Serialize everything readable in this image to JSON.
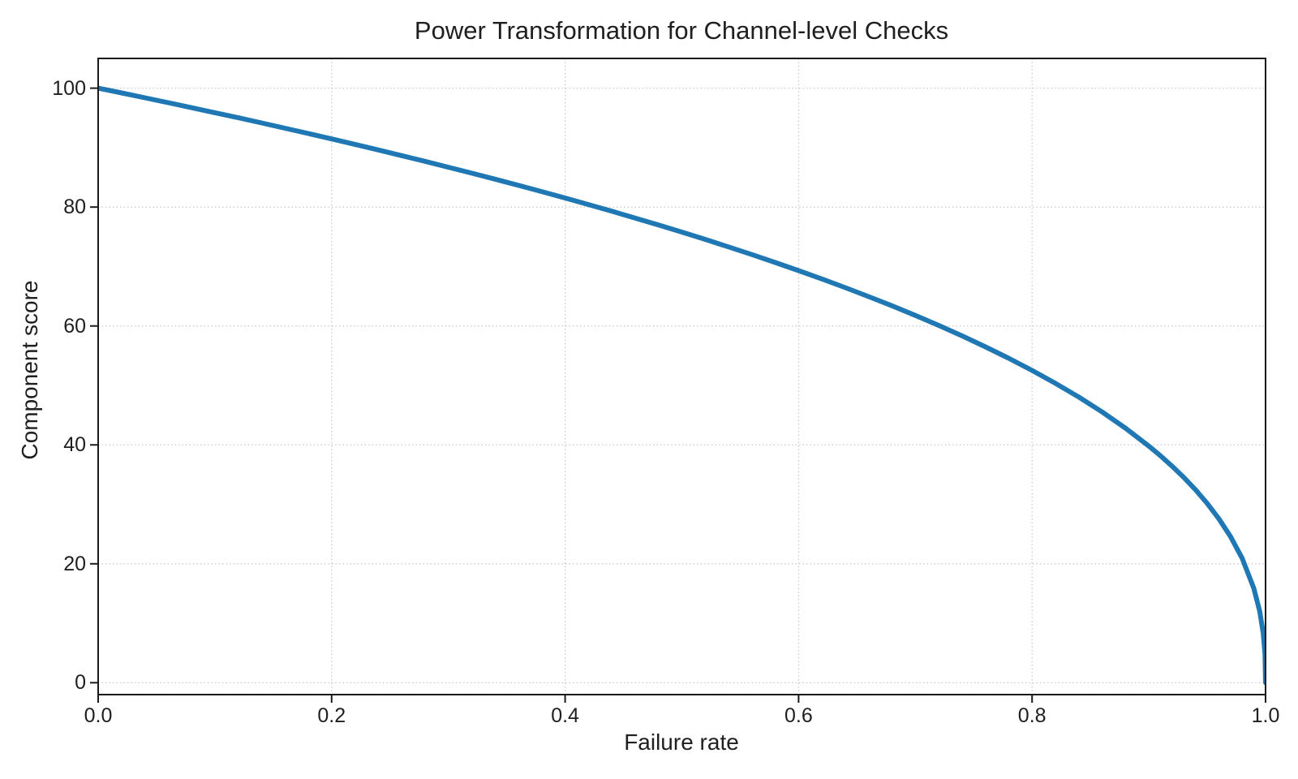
{
  "title": "Power Transformation for Channel-level Checks",
  "colors": {
    "line": "#1f77b4",
    "grid": "#c9c9c9",
    "spine": "#1a1a1a",
    "text": "#1f1f1f",
    "background": "#ffffff"
  },
  "chart_data": {
    "type": "line",
    "title": "Power Transformation for Channel-level Checks",
    "xlabel": "Failure rate",
    "ylabel": "Component score",
    "xlim": [
      0.0,
      1.0
    ],
    "ylim": [
      -2,
      105
    ],
    "xticks": [
      0.0,
      0.2,
      0.4,
      0.6,
      0.8,
      1.0
    ],
    "xtick_labels": [
      "0.0",
      "0.2",
      "0.4",
      "0.6",
      "0.8",
      "1.0"
    ],
    "yticks": [
      0,
      20,
      40,
      60,
      80,
      100
    ],
    "ytick_labels": [
      "0",
      "20",
      "40",
      "60",
      "80",
      "100"
    ],
    "grid": "dotted",
    "legend": false,
    "formula": "y = 100 * (1 - x)^0.4",
    "series": [
      {
        "name": "component-score-curve",
        "x": [
          0,
          0.02,
          0.04,
          0.06,
          0.08,
          0.1,
          0.12,
          0.14,
          0.16,
          0.18,
          0.2,
          0.22,
          0.24,
          0.26,
          0.28,
          0.3,
          0.32,
          0.34,
          0.36,
          0.38,
          0.4,
          0.42,
          0.44,
          0.46,
          0.48,
          0.5,
          0.52,
          0.54,
          0.56,
          0.58,
          0.6,
          0.62,
          0.64,
          0.66,
          0.68,
          0.7,
          0.72,
          0.74,
          0.76,
          0.78,
          0.8,
          0.82,
          0.84,
          0.86,
          0.88,
          0.9,
          0.91,
          0.92,
          0.93,
          0.94,
          0.95,
          0.96,
          0.97,
          0.98,
          0.99,
          0.995,
          0.998,
          0.9995,
          1.0
        ],
        "y": [
          100,
          99.2,
          98.38,
          97.56,
          96.72,
          95.87,
          95.02,
          94.15,
          93.26,
          92.37,
          91.46,
          90.54,
          89.6,
          88.65,
          87.69,
          86.7,
          85.7,
          84.69,
          83.65,
          82.6,
          81.52,
          80.42,
          79.3,
          78.15,
          76.98,
          75.79,
          74.56,
          73.3,
          72.01,
          70.68,
          69.31,
          67.91,
          66.45,
          64.95,
          63.4,
          61.78,
          60.1,
          58.34,
          56.5,
          54.57,
          52.53,
          50.36,
          48.05,
          45.55,
          42.82,
          39.81,
          38.17,
          36.41,
          34.52,
          32.45,
          30.17,
          27.59,
          24.59,
          20.91,
          15.85,
          12.01,
          8.33,
          4.78,
          0
        ]
      }
    ]
  }
}
